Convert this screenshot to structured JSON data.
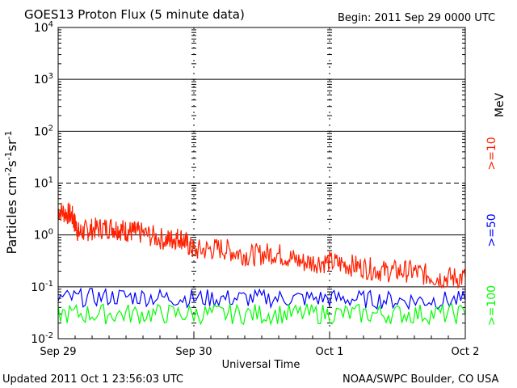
{
  "header": {
    "title": "GOES13 Proton Flux (5 minute data)",
    "begin": "Begin: 2011 Sep 29 0000 UTC"
  },
  "footer": {
    "updated": "Updated 2011 Oct  1 23:56:03 UTC",
    "credit": "NOAA/SWPC Boulder, CO USA"
  },
  "chart_data": {
    "type": "line",
    "title": "GOES13 Proton Flux (5 minute data)",
    "xlabel": "Universal Time",
    "ylabel": "Particles cm-2s-1sr-1",
    "yscale": "log",
    "ylim": [
      0.01,
      10000
    ],
    "xlim": [
      0,
      3
    ],
    "x_tick_labels": [
      "Sep 29",
      "Sep 30",
      "Oct 1",
      "Oct 2"
    ],
    "y_tick_labels": [
      {
        "base": "10",
        "exp": "-2"
      },
      {
        "base": "10",
        "exp": "-1"
      },
      {
        "base": "10",
        "exp": "0"
      },
      {
        "base": "10",
        "exp": "1"
      },
      {
        "base": "10",
        "exp": "2"
      },
      {
        "base": "10",
        "exp": "3"
      },
      {
        "base": "10",
        "exp": "4"
      }
    ],
    "legend_unit": "MeV",
    "series": [
      {
        "name": ">=10",
        "color": "#ff2000",
        "points": [
          [
            0,
            3.0
          ],
          [
            0.1,
            2.4
          ],
          [
            0.15,
            1.1
          ],
          [
            0.25,
            1.3
          ],
          [
            0.4,
            1.4
          ],
          [
            0.5,
            1.2
          ],
          [
            0.6,
            1.1
          ],
          [
            0.8,
            0.8
          ],
          [
            0.9,
            0.9
          ],
          [
            1.0,
            0.5
          ],
          [
            1.2,
            0.55
          ],
          [
            1.4,
            0.4
          ],
          [
            1.6,
            0.45
          ],
          [
            1.8,
            0.3
          ],
          [
            2.0,
            0.3
          ],
          [
            2.2,
            0.25
          ],
          [
            2.4,
            0.2
          ],
          [
            2.6,
            0.2
          ],
          [
            2.8,
            0.15
          ],
          [
            3.0,
            0.15
          ]
        ]
      },
      {
        "name": ">=50",
        "color": "#0000ff",
        "points": [
          [
            0,
            0.06
          ],
          [
            0.5,
            0.065
          ],
          [
            1.0,
            0.06
          ],
          [
            1.5,
            0.06
          ],
          [
            2.0,
            0.06
          ],
          [
            2.5,
            0.055
          ],
          [
            3.0,
            0.055
          ]
        ]
      },
      {
        "name": ">=100",
        "color": "#00ff00",
        "points": [
          [
            0,
            0.03
          ],
          [
            0.5,
            0.03
          ],
          [
            1.0,
            0.03
          ],
          [
            1.5,
            0.03
          ],
          [
            2.0,
            0.03
          ],
          [
            2.5,
            0.03
          ],
          [
            3.0,
            0.03
          ]
        ]
      }
    ]
  }
}
